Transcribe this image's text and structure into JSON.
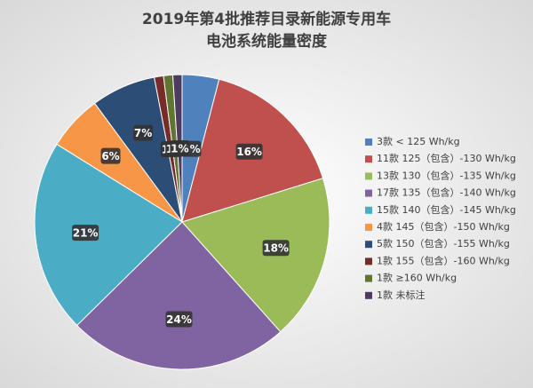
{
  "chart_data": {
    "type": "pie",
    "title": "2019年第4批推荐目录新能源专用车",
    "subtitle": "电池系统能量密度",
    "categories": [
      "3款 < 125 Wh/kg",
      "11款 125（包含）-130 Wh/kg",
      "13款 130（包含）-135 Wh/kg",
      "17款 135（包含）-140 Wh/kg",
      "15款 140（包含）-145 Wh/kg",
      "4款 145（包含）-150 Wh/kg",
      "5款 150（包含）-155 Wh/kg",
      "1款 155（包含）-160 Wh/kg",
      "1款 ≥160 Wh/kg",
      "1款 未标注"
    ],
    "values": [
      4,
      16,
      18,
      24,
      21,
      6,
      7,
      1,
      1,
      1
    ],
    "value_labels": [
      "4%",
      "16%",
      "18%",
      "24%",
      "21%",
      "6%",
      "7%",
      "1%",
      "1%",
      "1%"
    ],
    "colors": [
      "#4f81bd",
      "#c0504d",
      "#9bbb59",
      "#8064a2",
      "#4bacc6",
      "#f79646",
      "#2c4d75",
      "#772c2a",
      "#5f7530",
      "#4d3b62"
    ],
    "legend": "right"
  }
}
